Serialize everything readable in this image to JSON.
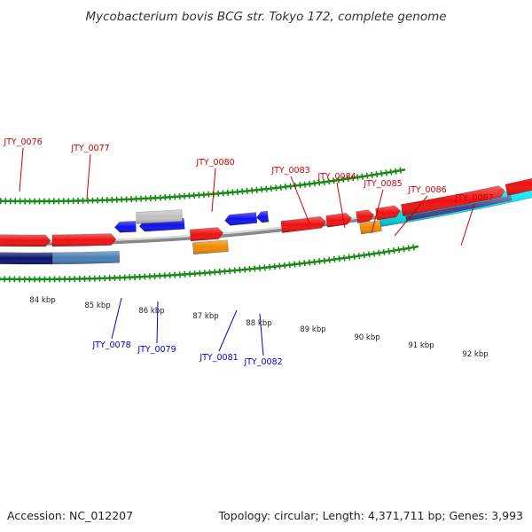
{
  "title": "Mycobacterium bovis BCG str. Tokyo 172, complete genome",
  "footer": {
    "accession": "Accession: NC_012207",
    "topology": "Topology: circular; Length: 4,371,711 bp; Genes: 3,993"
  },
  "scale_labels": [
    "84 kbp",
    "85 kbp",
    "86 kbp",
    "87 kbp",
    "88 kbp",
    "89 kbp",
    "90 kbp",
    "91 kbp",
    "92 kbp"
  ],
  "colors": {
    "forward_label": "#cc0000",
    "reverse_label": "#0000cc",
    "backbone": "#888888",
    "ticks": "#1a8a1a",
    "red": "#ee1111",
    "blue": "#1111ee",
    "orange": "#f08a00",
    "cyan": "#00e5f0",
    "navy": "#0a1470",
    "steel_blue": "#4a7fb5",
    "purple": "#4a3c8c",
    "grey": "#c0c0c0"
  },
  "forward_gene_labels": [
    "JTY_0076",
    "JTY_0077",
    "JTY_0080",
    "JTY_0083",
    "JTY_0084",
    "JTY_0085",
    "JTY_0086",
    "JTY_0087"
  ],
  "reverse_gene_labels": [
    "JTY_0078",
    "JTY_0079",
    "JTY_0081",
    "JTY_0082"
  ],
  "features": {
    "outer_forward": [
      {
        "color": "navy"
      },
      {
        "color": "steel_blue"
      },
      {
        "color": "orange"
      },
      {
        "color": "orange"
      },
      {
        "color": "cyan"
      },
      {
        "color": "purple"
      }
    ],
    "forward_cds": [
      {
        "color": "red"
      },
      {
        "color": "red"
      },
      {
        "color": "red"
      },
      {
        "color": "red"
      },
      {
        "color": "red"
      },
      {
        "color": "red"
      },
      {
        "color": "red"
      },
      {
        "color": "red"
      },
      {
        "color": "red"
      }
    ],
    "reverse_cds": [
      {
        "color": "blue"
      },
      {
        "color": "blue"
      },
      {
        "color": "blue"
      },
      {
        "color": "blue"
      }
    ],
    "reverse_outer": [
      {
        "color": "grey"
      }
    ]
  }
}
